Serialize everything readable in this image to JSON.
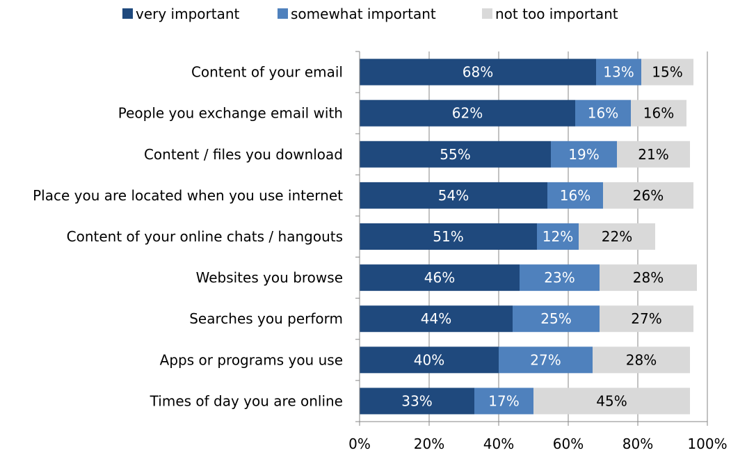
{
  "chart_data": {
    "type": "bar",
    "orientation": "horizontal",
    "stacked": true,
    "categories": [
      "Content of your email",
      "People you exchange email with",
      "Content / files you download",
      "Place you are located when you use internet",
      "Content of your online chats / hangouts",
      "Websites you browse",
      "Searches you perform",
      "Apps or programs you use",
      "Times of day you are online"
    ],
    "series": [
      {
        "name": "very important",
        "color": "#1F497D",
        "label_color": "#ffffff",
        "values": [
          68,
          62,
          55,
          54,
          51,
          46,
          44,
          40,
          33
        ],
        "labels": [
          "68%",
          "62%",
          "55%",
          "54%",
          "51%",
          "46%",
          "44%",
          "40%",
          "33%"
        ]
      },
      {
        "name": "somewhat important",
        "color": "#4F81BD",
        "label_color": "#ffffff",
        "values": [
          13,
          16,
          19,
          16,
          12,
          23,
          25,
          27,
          17
        ],
        "labels": [
          "13%",
          "16%",
          "19%",
          "16%",
          "12%",
          "23%",
          "25%",
          "27%",
          "17%"
        ]
      },
      {
        "name": "not too important",
        "color": "#D9D9D9",
        "label_color": "#000000",
        "values": [
          15,
          16,
          21,
          26,
          22,
          28,
          27,
          28,
          45
        ],
        "labels": [
          "15%",
          "16%",
          "21%",
          "26%",
          "22%",
          "28%",
          "27%",
          "28%",
          "45%"
        ]
      }
    ],
    "xlim": [
      0,
      100
    ],
    "xticks": [
      0,
      20,
      40,
      60,
      80,
      100
    ],
    "xtick_labels": [
      "0%",
      "20%",
      "40%",
      "60%",
      "80%",
      "100%"
    ],
    "grid": true,
    "legend_position": "top",
    "title": "",
    "xlabel": "",
    "ylabel": ""
  }
}
